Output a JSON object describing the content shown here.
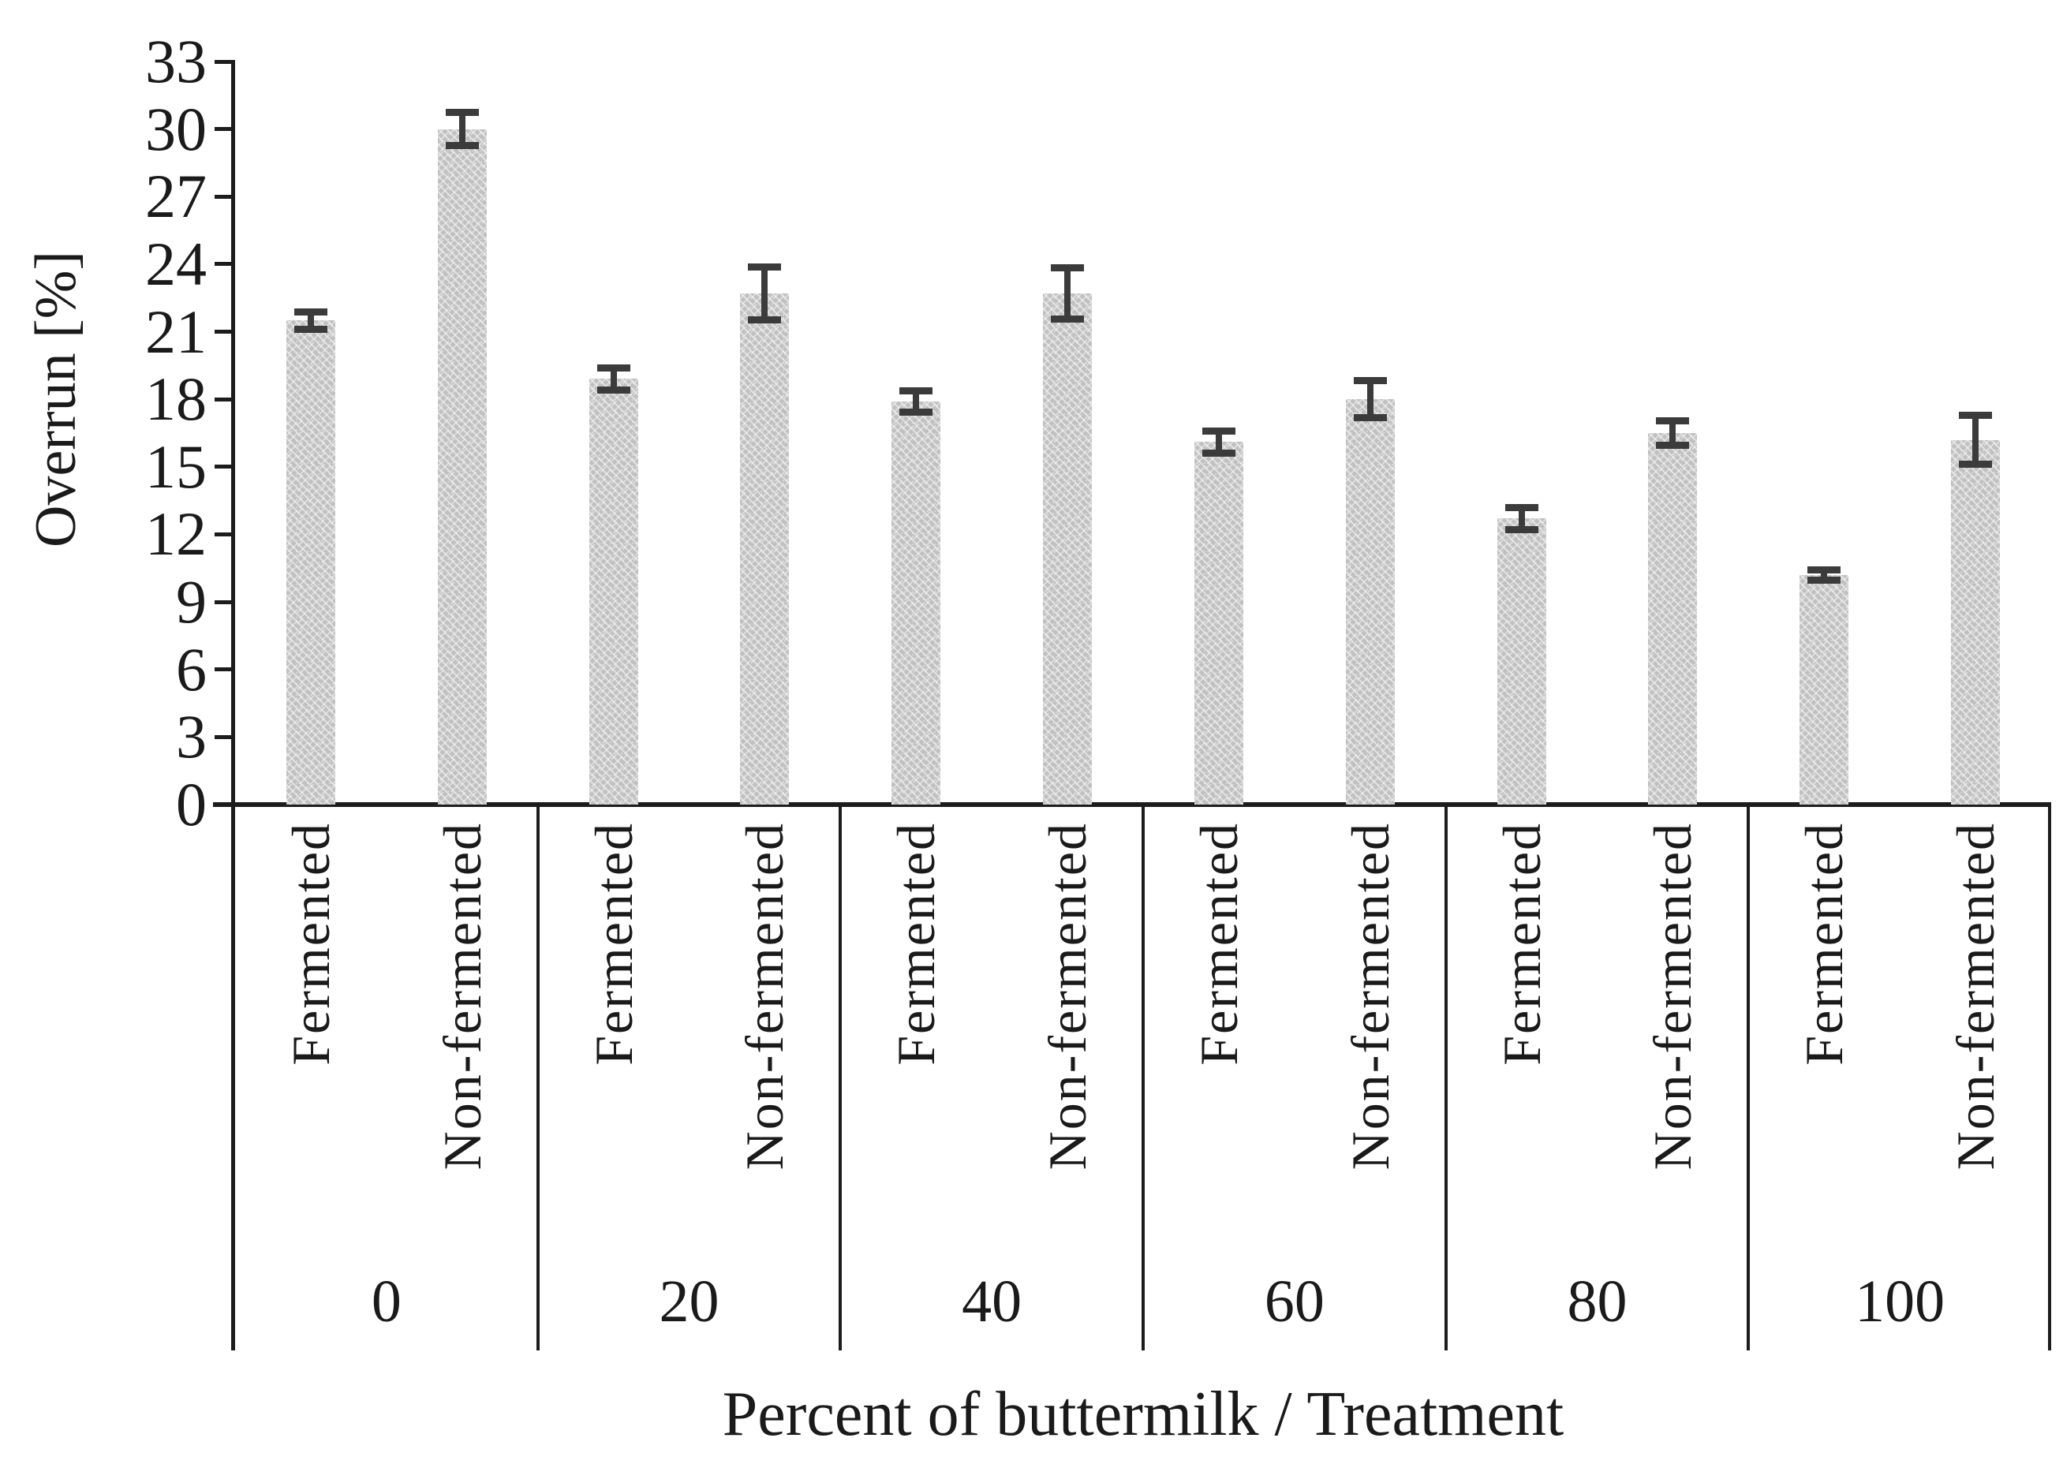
{
  "figure": {
    "background": "#ffffff",
    "text_color": "#1a1a1a",
    "axis_color": "#1c1c1c"
  },
  "chart_data": {
    "type": "bar",
    "title": "",
    "ylabel": "Overrun [%]",
    "xlabel": "Percent of buttermilk / Treatment",
    "ylim": [
      0,
      33
    ],
    "y_ticks": [
      0,
      3,
      6,
      9,
      12,
      15,
      18,
      21,
      24,
      27,
      30,
      33
    ],
    "grid": false,
    "legend_position": "none",
    "categories": [
      "0",
      "20",
      "40",
      "60",
      "80",
      "100"
    ],
    "treatments": [
      "Fermented",
      "Non-fermented"
    ],
    "series": [
      {
        "name": "Fermented",
        "values": [
          21.5,
          18.9,
          17.9,
          16.1,
          12.7,
          10.2
        ],
        "errors": [
          0.4,
          0.5,
          0.5,
          0.5,
          0.5,
          0.25
        ]
      },
      {
        "name": "Non-fermented",
        "values": [
          30.0,
          22.7,
          22.7,
          18.0,
          16.5,
          16.2
        ],
        "errors": [
          0.75,
          1.2,
          1.15,
          0.85,
          0.55,
          1.1
        ]
      }
    ],
    "bar_color": "#c8c8c8",
    "bar_pattern": "dotted-weave",
    "error_bar_color": "#3b3b3b"
  }
}
